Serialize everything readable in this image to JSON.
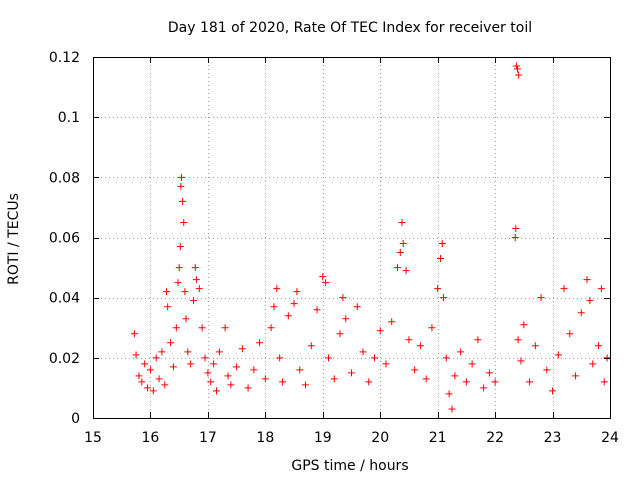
{
  "chart_data": {
    "type": "scatter",
    "title": "Day 181 of 2020, Rate Of TEC Index for receiver toil",
    "xlabel": "GPS time / hours",
    "ylabel": "ROTI / TECUs",
    "xlim": [
      15,
      24
    ],
    "ylim": [
      0,
      0.12
    ],
    "x_ticks": [
      15,
      16,
      17,
      18,
      19,
      20,
      21,
      22,
      23,
      24
    ],
    "x_tick_labels": [
      "15",
      "16",
      "17",
      "18",
      "19",
      "20",
      "21",
      "22",
      "23",
      "24"
    ],
    "y_ticks": [
      0,
      0.02,
      0.04,
      0.06,
      0.08,
      0.1,
      0.12
    ],
    "y_tick_labels": [
      "0",
      "0.02",
      "0.04",
      "0.06",
      "0.08",
      "0.1",
      "0.12"
    ],
    "grid": true,
    "marker": "+",
    "color": "#ff0000",
    "series": [
      {
        "name": "ROTI",
        "points": [
          [
            15.72,
            0.028
          ],
          [
            15.75,
            0.021
          ],
          [
            15.8,
            0.014
          ],
          [
            15.85,
            0.012
          ],
          [
            15.9,
            0.018
          ],
          [
            15.95,
            0.01
          ],
          [
            16.0,
            0.016
          ],
          [
            16.05,
            0.009
          ],
          [
            16.1,
            0.02
          ],
          [
            16.15,
            0.013
          ],
          [
            16.2,
            0.022
          ],
          [
            16.25,
            0.011
          ],
          [
            16.28,
            0.042
          ],
          [
            16.3,
            0.037
          ],
          [
            16.35,
            0.025
          ],
          [
            16.4,
            0.017
          ],
          [
            16.45,
            0.03
          ],
          [
            16.48,
            0.045
          ],
          [
            16.5,
            0.05
          ],
          [
            16.52,
            0.057
          ],
          [
            16.53,
            0.077
          ],
          [
            16.54,
            0.08
          ],
          [
            16.56,
            0.072
          ],
          [
            16.58,
            0.065
          ],
          [
            16.6,
            0.042
          ],
          [
            16.62,
            0.033
          ],
          [
            16.65,
            0.022
          ],
          [
            16.7,
            0.018
          ],
          [
            16.75,
            0.039
          ],
          [
            16.78,
            0.05
          ],
          [
            16.8,
            0.046
          ],
          [
            16.85,
            0.043
          ],
          [
            16.9,
            0.03
          ],
          [
            16.95,
            0.02
          ],
          [
            17.0,
            0.015
          ],
          [
            17.05,
            0.012
          ],
          [
            17.1,
            0.018
          ],
          [
            17.15,
            0.009
          ],
          [
            17.2,
            0.022
          ],
          [
            17.3,
            0.03
          ],
          [
            17.35,
            0.014
          ],
          [
            17.4,
            0.011
          ],
          [
            17.5,
            0.017
          ],
          [
            17.6,
            0.023
          ],
          [
            17.7,
            0.01
          ],
          [
            17.8,
            0.016
          ],
          [
            17.9,
            0.025
          ],
          [
            18.0,
            0.013
          ],
          [
            18.1,
            0.03
          ],
          [
            18.15,
            0.037
          ],
          [
            18.2,
            0.043
          ],
          [
            18.25,
            0.02
          ],
          [
            18.3,
            0.012
          ],
          [
            18.4,
            0.034
          ],
          [
            18.5,
            0.038
          ],
          [
            18.55,
            0.042
          ],
          [
            18.6,
            0.016
          ],
          [
            18.7,
            0.011
          ],
          [
            18.8,
            0.024
          ],
          [
            18.9,
            0.036
          ],
          [
            19.0,
            0.047
          ],
          [
            19.05,
            0.045
          ],
          [
            19.1,
            0.02
          ],
          [
            19.2,
            0.013
          ],
          [
            19.3,
            0.028
          ],
          [
            19.35,
            0.04
          ],
          [
            19.4,
            0.033
          ],
          [
            19.5,
            0.015
          ],
          [
            19.6,
            0.037
          ],
          [
            19.7,
            0.022
          ],
          [
            19.8,
            0.012
          ],
          [
            19.9,
            0.02
          ],
          [
            20.0,
            0.029
          ],
          [
            20.1,
            0.018
          ],
          [
            20.2,
            0.032
          ],
          [
            20.3,
            0.05
          ],
          [
            20.35,
            0.055
          ],
          [
            20.38,
            0.065
          ],
          [
            20.4,
            0.058
          ],
          [
            20.45,
            0.049
          ],
          [
            20.5,
            0.026
          ],
          [
            20.6,
            0.016
          ],
          [
            20.7,
            0.024
          ],
          [
            20.8,
            0.013
          ],
          [
            20.9,
            0.03
          ],
          [
            21.0,
            0.043
          ],
          [
            21.05,
            0.053
          ],
          [
            21.08,
            0.058
          ],
          [
            21.1,
            0.04
          ],
          [
            21.15,
            0.02
          ],
          [
            21.2,
            0.008
          ],
          [
            21.25,
            0.003
          ],
          [
            21.3,
            0.014
          ],
          [
            21.4,
            0.022
          ],
          [
            21.5,
            0.012
          ],
          [
            21.6,
            0.018
          ],
          [
            21.7,
            0.026
          ],
          [
            21.8,
            0.01
          ],
          [
            21.9,
            0.015
          ],
          [
            22.0,
            0.012
          ],
          [
            22.35,
            0.06
          ],
          [
            22.36,
            0.063
          ],
          [
            22.37,
            0.117
          ],
          [
            22.39,
            0.116
          ],
          [
            22.41,
            0.114
          ],
          [
            22.4,
            0.026
          ],
          [
            22.45,
            0.019
          ],
          [
            22.5,
            0.031
          ],
          [
            22.6,
            0.012
          ],
          [
            22.7,
            0.024
          ],
          [
            22.8,
            0.04
          ],
          [
            22.9,
            0.016
          ],
          [
            23.0,
            0.009
          ],
          [
            23.1,
            0.021
          ],
          [
            23.2,
            0.043
          ],
          [
            23.3,
            0.028
          ],
          [
            23.4,
            0.014
          ],
          [
            23.5,
            0.035
          ],
          [
            23.6,
            0.046
          ],
          [
            23.65,
            0.039
          ],
          [
            23.7,
            0.018
          ],
          [
            23.8,
            0.024
          ],
          [
            23.85,
            0.043
          ],
          [
            23.9,
            0.012
          ],
          [
            23.95,
            0.02
          ]
        ]
      }
    ]
  }
}
